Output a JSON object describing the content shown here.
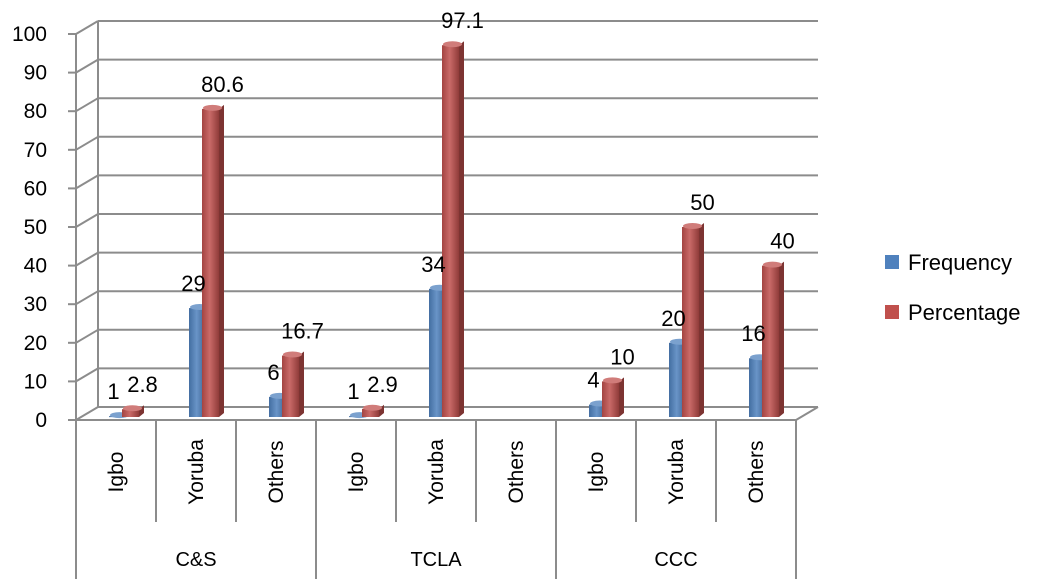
{
  "chart_data": {
    "type": "bar",
    "groups": [
      {
        "name": "C&S",
        "categories": [
          "Igbo",
          "Yoruba",
          "Others"
        ]
      },
      {
        "name": "TCLA",
        "categories": [
          "Igbo",
          "Yoruba",
          "Others"
        ]
      },
      {
        "name": "CCC",
        "categories": [
          "Igbo",
          "Yoruba",
          "Others"
        ]
      }
    ],
    "series": [
      {
        "name": "Frequency",
        "color": "#4f81bd",
        "values": [
          1,
          29,
          6,
          1,
          34,
          null,
          4,
          20,
          16
        ],
        "labels": [
          "1",
          "29",
          "6",
          "1",
          "34",
          "",
          "4",
          "20",
          "16"
        ]
      },
      {
        "name": "Percentage",
        "color": "#c0504d",
        "values": [
          2.8,
          80.6,
          16.7,
          2.9,
          97.1,
          null,
          10,
          50,
          40
        ],
        "labels": [
          "2.8",
          "80.6",
          "16.7",
          "2.9",
          "97.1",
          "",
          "10",
          "50",
          "40"
        ]
      }
    ],
    "ylim": [
      0,
      100
    ],
    "yticks": [
      "0",
      "10",
      "20",
      "30",
      "40",
      "50",
      "60",
      "70",
      "80",
      "90",
      "100"
    ],
    "title": "",
    "xlabel": "",
    "ylabel": "",
    "grid": true,
    "legend": "right"
  }
}
